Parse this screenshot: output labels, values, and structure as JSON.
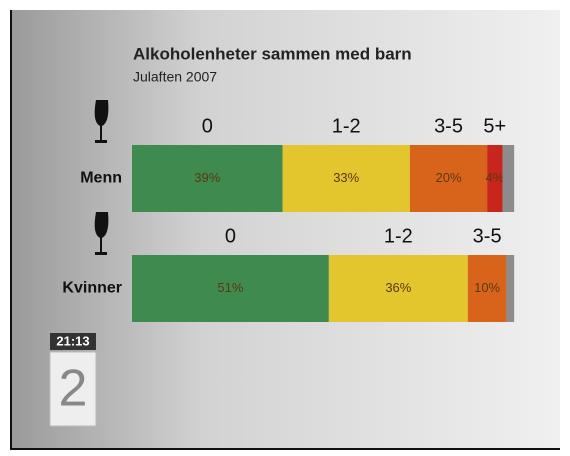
{
  "chart_data": {
    "type": "stacked-hbar",
    "title": "Alkoholenheter sammen med barn",
    "subtitle": "Julaften 2007",
    "xlim": [
      0,
      100
    ],
    "rows": [
      {
        "label": "Menn",
        "segments": [
          {
            "label": "0",
            "value": 39,
            "value_label": "39%",
            "color": "#3f8a4e"
          },
          {
            "label": "1-2",
            "value": 33,
            "value_label": "33%",
            "color": "#e3c52e"
          },
          {
            "label": "3-5",
            "value": 20,
            "value_label": "20%",
            "color": "#d8641c"
          },
          {
            "label": "5+",
            "value": 4,
            "value_label": "4%",
            "color": "#c8261c"
          },
          {
            "value": 3,
            "color": "#8c8c8c"
          }
        ]
      },
      {
        "label": "Kvinner",
        "segments": [
          {
            "label": "0",
            "value": 51,
            "value_label": "51%",
            "color": "#3f8a4e"
          },
          {
            "label": "1-2",
            "value": 36,
            "value_label": "36%",
            "color": "#e3c52e"
          },
          {
            "label": "3-5",
            "value": 10,
            "value_label": "10%",
            "color": "#d8641c"
          },
          {
            "value": 2,
            "color": "#8c8c8c"
          }
        ]
      }
    ]
  },
  "overlay": {
    "clock": "21:13",
    "channel_logo": "2"
  }
}
